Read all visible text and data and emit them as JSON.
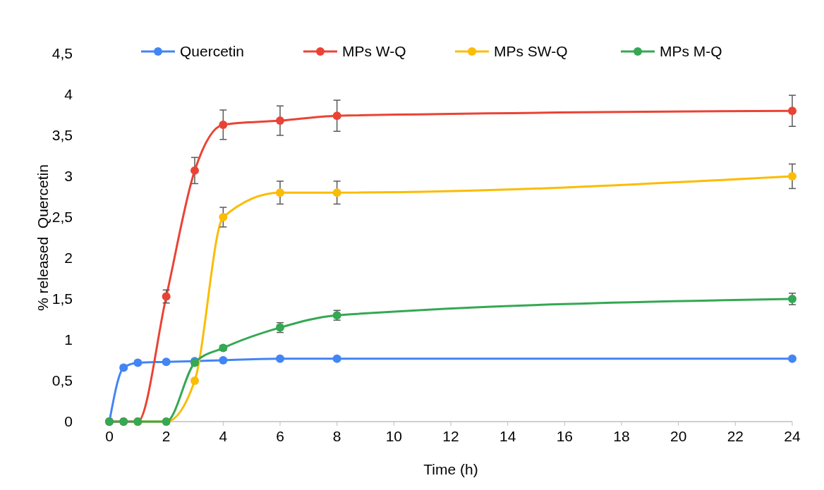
{
  "chart_data": {
    "type": "line",
    "xlabel": "Time (h)",
    "ylabel": "% released  Quercetin",
    "x": [
      0,
      0.5,
      1,
      2,
      3,
      4,
      6,
      8,
      24
    ],
    "series": [
      {
        "name": "Quercetin",
        "color": "#4285f4",
        "values": [
          0,
          0.66,
          0.72,
          0.73,
          0.74,
          0.75,
          0.77,
          0.77,
          0.77
        ],
        "errors": [
          null,
          0.02,
          0.02,
          0.02,
          0.02,
          0.02,
          0.02,
          0.02,
          0.02
        ]
      },
      {
        "name": "MPs W-Q",
        "color": "#ea4335",
        "values": [
          0,
          0,
          0,
          1.53,
          3.07,
          3.63,
          3.68,
          3.74,
          3.8
        ],
        "errors": [
          null,
          null,
          null,
          0.08,
          0.16,
          0.18,
          0.18,
          0.19,
          0.19
        ]
      },
      {
        "name": "MPs SW-Q",
        "color": "#fbbc04",
        "values": [
          null,
          null,
          0,
          0,
          0.5,
          2.5,
          2.8,
          2.8,
          3
        ],
        "errors": [
          null,
          null,
          null,
          null,
          null,
          0.12,
          0.14,
          0.14,
          0.15
        ]
      },
      {
        "name": "MPs M-Q",
        "color": "#34a853",
        "values": [
          0,
          0,
          0,
          0,
          0.72,
          0.9,
          1.15,
          1.3,
          1.5
        ],
        "errors": [
          null,
          null,
          null,
          null,
          0.03,
          0.03,
          0.06,
          0.06,
          0.07
        ]
      }
    ],
    "xlim": [
      0,
      24
    ],
    "xticks": [
      0,
      2,
      4,
      6,
      8,
      10,
      12,
      14,
      16,
      18,
      20,
      22,
      24
    ],
    "ylim": [
      0,
      4.5
    ],
    "yticks": [
      0,
      {
        "value": 0.5,
        "label": "0,5"
      },
      1,
      {
        "value": 1.5,
        "label": "1,5"
      },
      2,
      {
        "value": 2.5,
        "label": "2,5"
      },
      3,
      {
        "value": 3.5,
        "label": "3,5"
      },
      4,
      {
        "value": 4.5,
        "label": "4,5"
      }
    ],
    "grid": false,
    "legend": "top",
    "marker": "circle",
    "line_style": "solid"
  }
}
